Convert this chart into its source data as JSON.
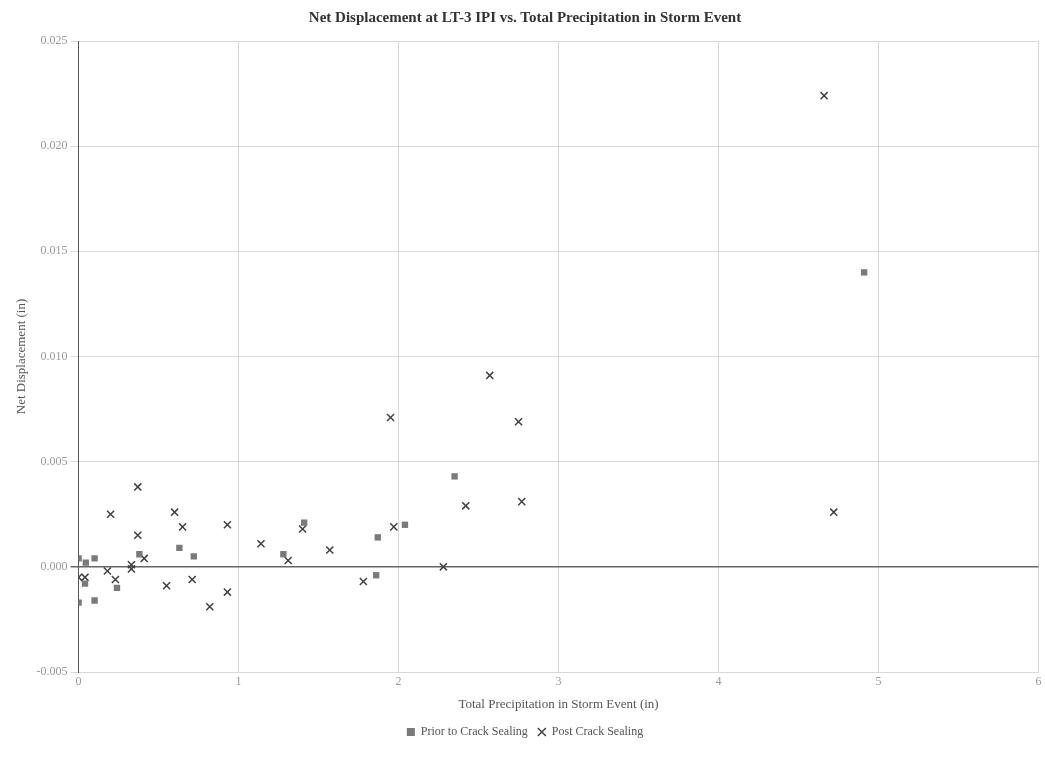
{
  "chart_data": {
    "type": "scatter",
    "title": "Net Displacement at LT-3 IPI vs. Total Precipitation in Storm Event",
    "xlabel": "Total Precipitation in Storm Event (in)",
    "ylabel": "Net Displacement (in)",
    "xlim": [
      0,
      6
    ],
    "xticks": [
      0,
      1,
      2,
      3,
      4,
      5,
      6
    ],
    "ylim": [
      -0.005,
      0.025
    ],
    "yticks": [
      {
        "value": -0.005,
        "label": "-0.005"
      },
      {
        "value": 0,
        "label": "0.000"
      },
      {
        "value": 0.005,
        "label": "0.005"
      },
      {
        "value": 0.01,
        "label": "0.010"
      },
      {
        "value": 0.015,
        "label": "0.015"
      },
      {
        "value": 0.02,
        "label": "0.020"
      },
      {
        "value": 0.025,
        "label": "0.025"
      }
    ],
    "grid": true,
    "legend": "bottom",
    "series": [
      {
        "name": "Prior to Crack Sealing",
        "color": "#7a7a7a",
        "marker": "square",
        "x": [
          0,
          0,
          0.045,
          0.04,
          0.1,
          0.1,
          0.24,
          0.38,
          0.72,
          0.63,
          1.28,
          1.41,
          1.87,
          1.86,
          2.04,
          2.35,
          4.91
        ],
        "values": [
          0.0004,
          -0.0017,
          0.0002,
          -0.0008,
          0.0004,
          -0.0016,
          -0.001,
          0.0006,
          0.0005,
          0.0009,
          0.0006,
          0.0021,
          0.0014,
          -0.0004,
          0.002,
          0.0043,
          0.014
        ]
      },
      {
        "name": "Post Crack Sealing",
        "color": "#404040",
        "marker": "cross",
        "x": [
          0.2,
          0.37,
          0.37,
          0.6,
          0.65,
          0.93,
          1.14,
          1.4,
          1.57,
          1.31,
          0.41,
          0.33,
          0.33,
          0.18,
          0.23,
          0,
          0.04,
          0.55,
          0.71,
          0.93,
          0.82,
          1.78,
          1.97,
          1.95,
          2.28,
          2.42,
          2.57,
          2.75,
          2.77,
          4.66,
          4.72
        ],
        "values": [
          0.0025,
          0.0038,
          0.0015,
          0.0026,
          0.0019,
          0.002,
          0.0011,
          0.0018,
          0.0008,
          0.0003,
          0.0004,
          0.0001,
          -0.0001,
          -0.0002,
          -0.0006,
          -0.0005,
          -0.0005,
          -0.0009,
          -0.0006,
          -0.0012,
          -0.0019,
          -0.0007,
          0.0019,
          0.0071,
          0,
          0.0029,
          0.0091,
          0.0069,
          0.0031,
          0.0224,
          0.0026
        ]
      }
    ]
  }
}
